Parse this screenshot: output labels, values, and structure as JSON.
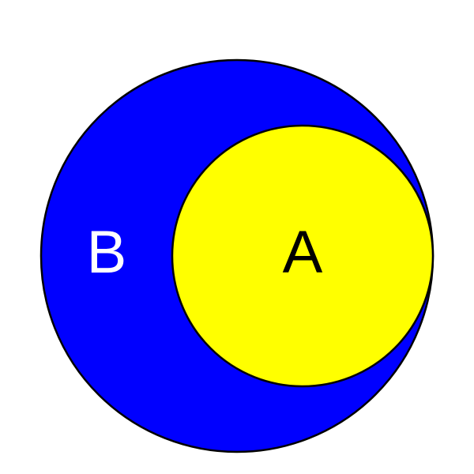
{
  "diagram": {
    "sets": [
      {
        "id": "B",
        "label": "B",
        "fill": "#0000ff",
        "label_color": "#ffffff"
      },
      {
        "id": "A",
        "label": "A",
        "fill": "#ffff00",
        "label_color": "#000000",
        "subset_of": "B"
      }
    ],
    "stroke_color": "#000000"
  }
}
